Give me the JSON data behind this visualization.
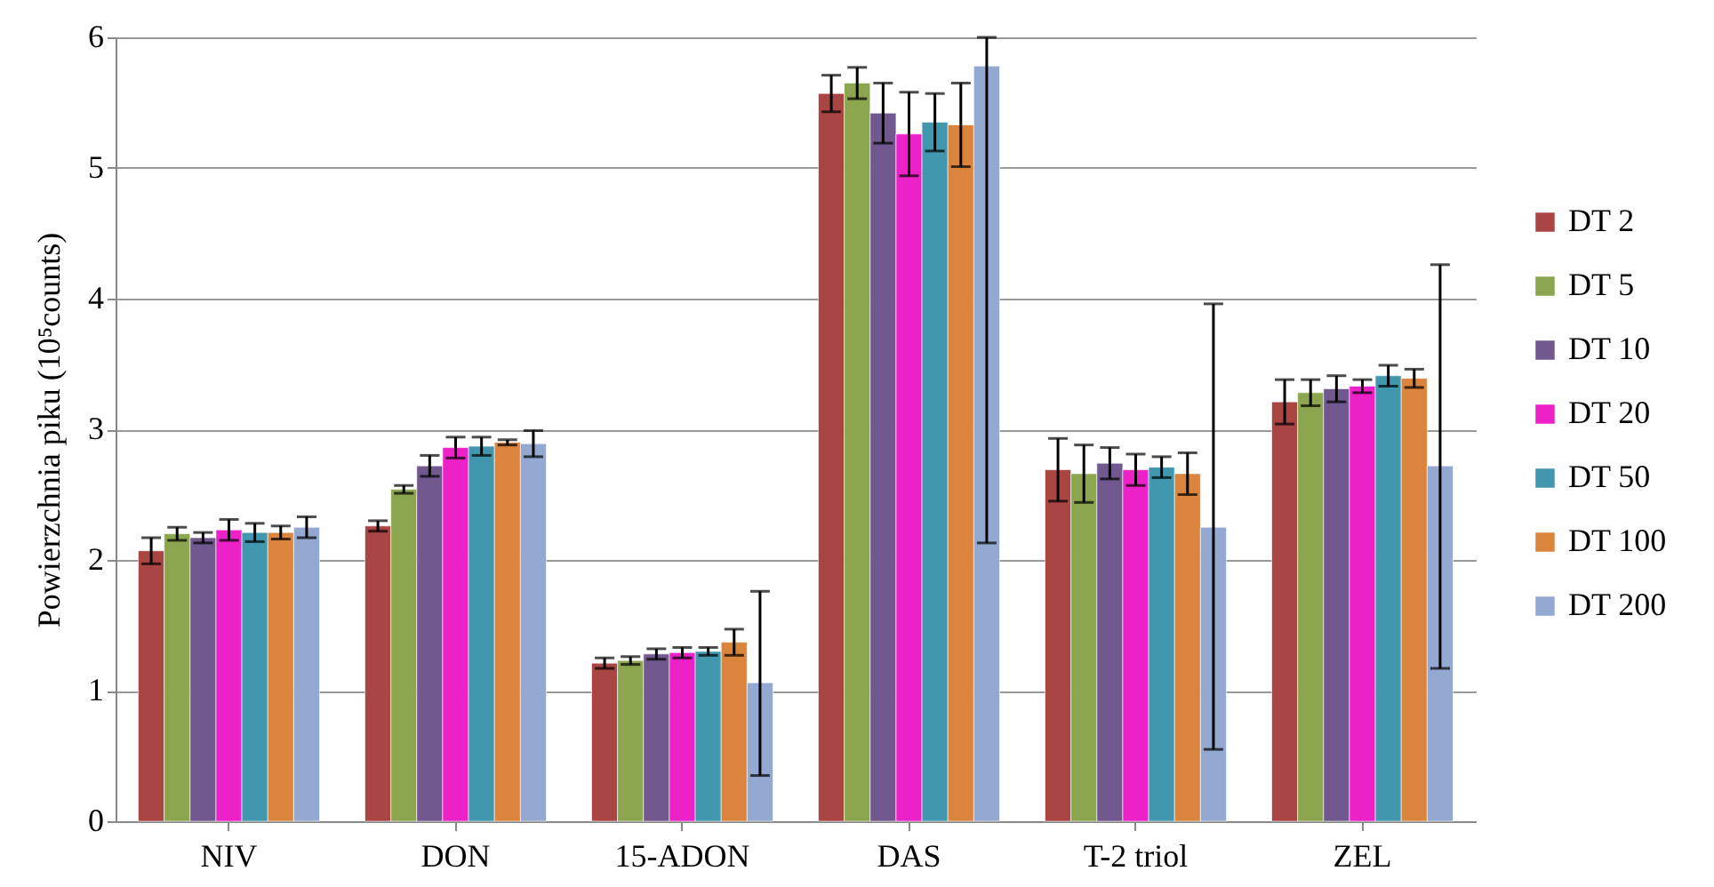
{
  "chart_data": {
    "type": "bar",
    "ylabel": "Powierzchnia piku (10⁵counts)",
    "categories": [
      "NIV",
      "DON",
      "15-ADON",
      "DAS",
      "T-2 triol",
      "ZEL"
    ],
    "ylim": [
      0,
      6
    ],
    "yticks": [
      0,
      1,
      2,
      3,
      4,
      5,
      6
    ],
    "grid": "y",
    "legend": "right",
    "series": [
      {
        "name": "DT 2",
        "color": "#a94543",
        "values": [
          2.07,
          2.26,
          1.21,
          5.57,
          2.69,
          3.21
        ],
        "errors": [
          0.1,
          0.04,
          0.04,
          0.14,
          0.24,
          0.17
        ]
      },
      {
        "name": "DT 5",
        "color": "#8ba64e",
        "values": [
          2.2,
          2.54,
          1.23,
          5.65,
          2.66,
          3.28
        ],
        "errors": [
          0.05,
          0.03,
          0.03,
          0.12,
          0.22,
          0.1
        ]
      },
      {
        "name": "DT 10",
        "color": "#71598f",
        "values": [
          2.17,
          2.72,
          1.28,
          5.42,
          2.74,
          3.31
        ],
        "errors": [
          0.04,
          0.08,
          0.04,
          0.23,
          0.12,
          0.1
        ]
      },
      {
        "name": "DT 20",
        "color": "#ec22c8",
        "values": [
          2.23,
          2.86,
          1.29,
          5.26,
          2.69,
          3.33
        ],
        "errors": [
          0.08,
          0.08,
          0.04,
          0.32,
          0.12,
          0.05
        ]
      },
      {
        "name": "DT 50",
        "color": "#4198ae",
        "values": [
          2.21,
          2.87,
          1.3,
          5.35,
          2.71,
          3.41
        ],
        "errors": [
          0.07,
          0.07,
          0.03,
          0.22,
          0.08,
          0.08
        ]
      },
      {
        "name": "DT 100",
        "color": "#db843d",
        "values": [
          2.21,
          2.9,
          1.37,
          5.33,
          2.66,
          3.39
        ],
        "errors": [
          0.05,
          0.02,
          0.1,
          0.32,
          0.16,
          0.07
        ]
      },
      {
        "name": "DT 200",
        "color": "#94a9d1",
        "values": [
          2.25,
          2.89,
          1.06,
          5.78,
          2.25,
          2.72
        ],
        "errors": [
          0.08,
          0.1,
          [
            0.35,
            1.76
          ],
          [
            2.13,
            6
          ],
          [
            0.55,
            3.96
          ],
          [
            1.17,
            4.26
          ]
        ]
      }
    ]
  }
}
